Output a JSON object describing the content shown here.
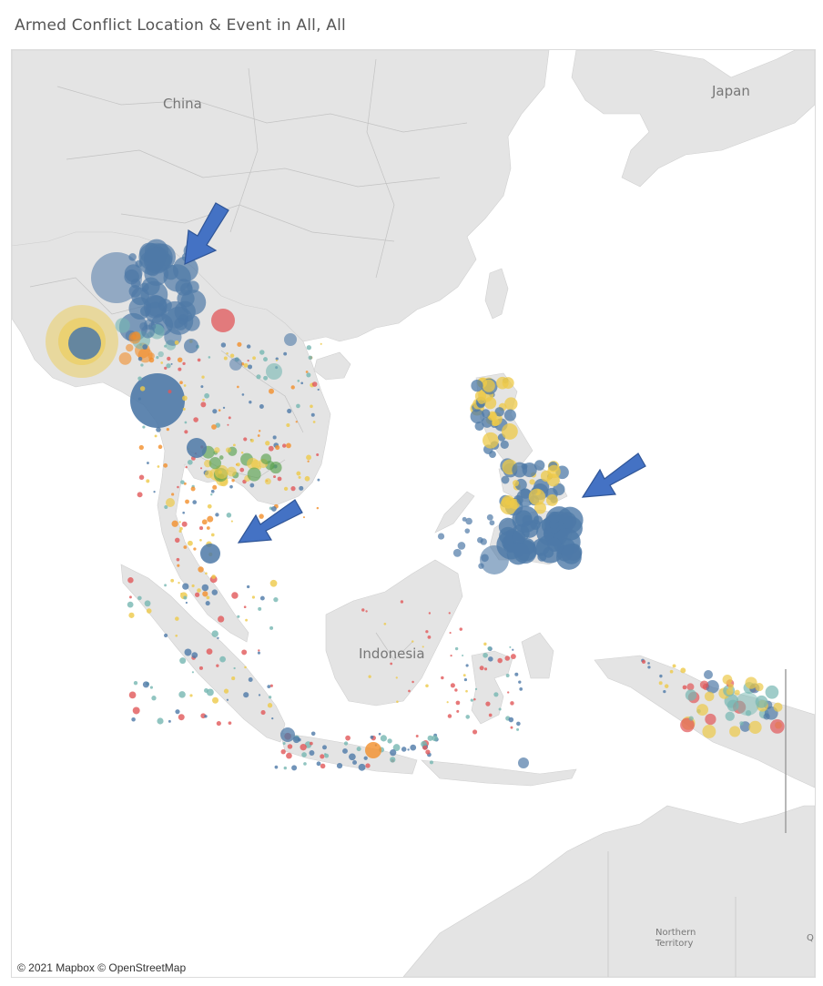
{
  "title": "Armed Conflict Location & Event in All, All",
  "map": {
    "labels": {
      "china": "China",
      "japan": "Japan",
      "indonesia": "Indonesia",
      "northern_territory_1": "Northern",
      "northern_territory_2": "Territory",
      "q_edge": "Q"
    },
    "attribution": "© 2021 Mapbox © OpenStreetMap",
    "marker_colors": {
      "blue": "#4e79a7",
      "yellow": "#edc948",
      "red": "#e15759",
      "orange": "#f28e2b",
      "green": "#59a14f",
      "teal": "#76b7b2"
    },
    "arrow_color": "#4472c4",
    "arrows": [
      "arrow-myanmar",
      "arrow-malay-peninsula",
      "arrow-philippines"
    ]
  }
}
